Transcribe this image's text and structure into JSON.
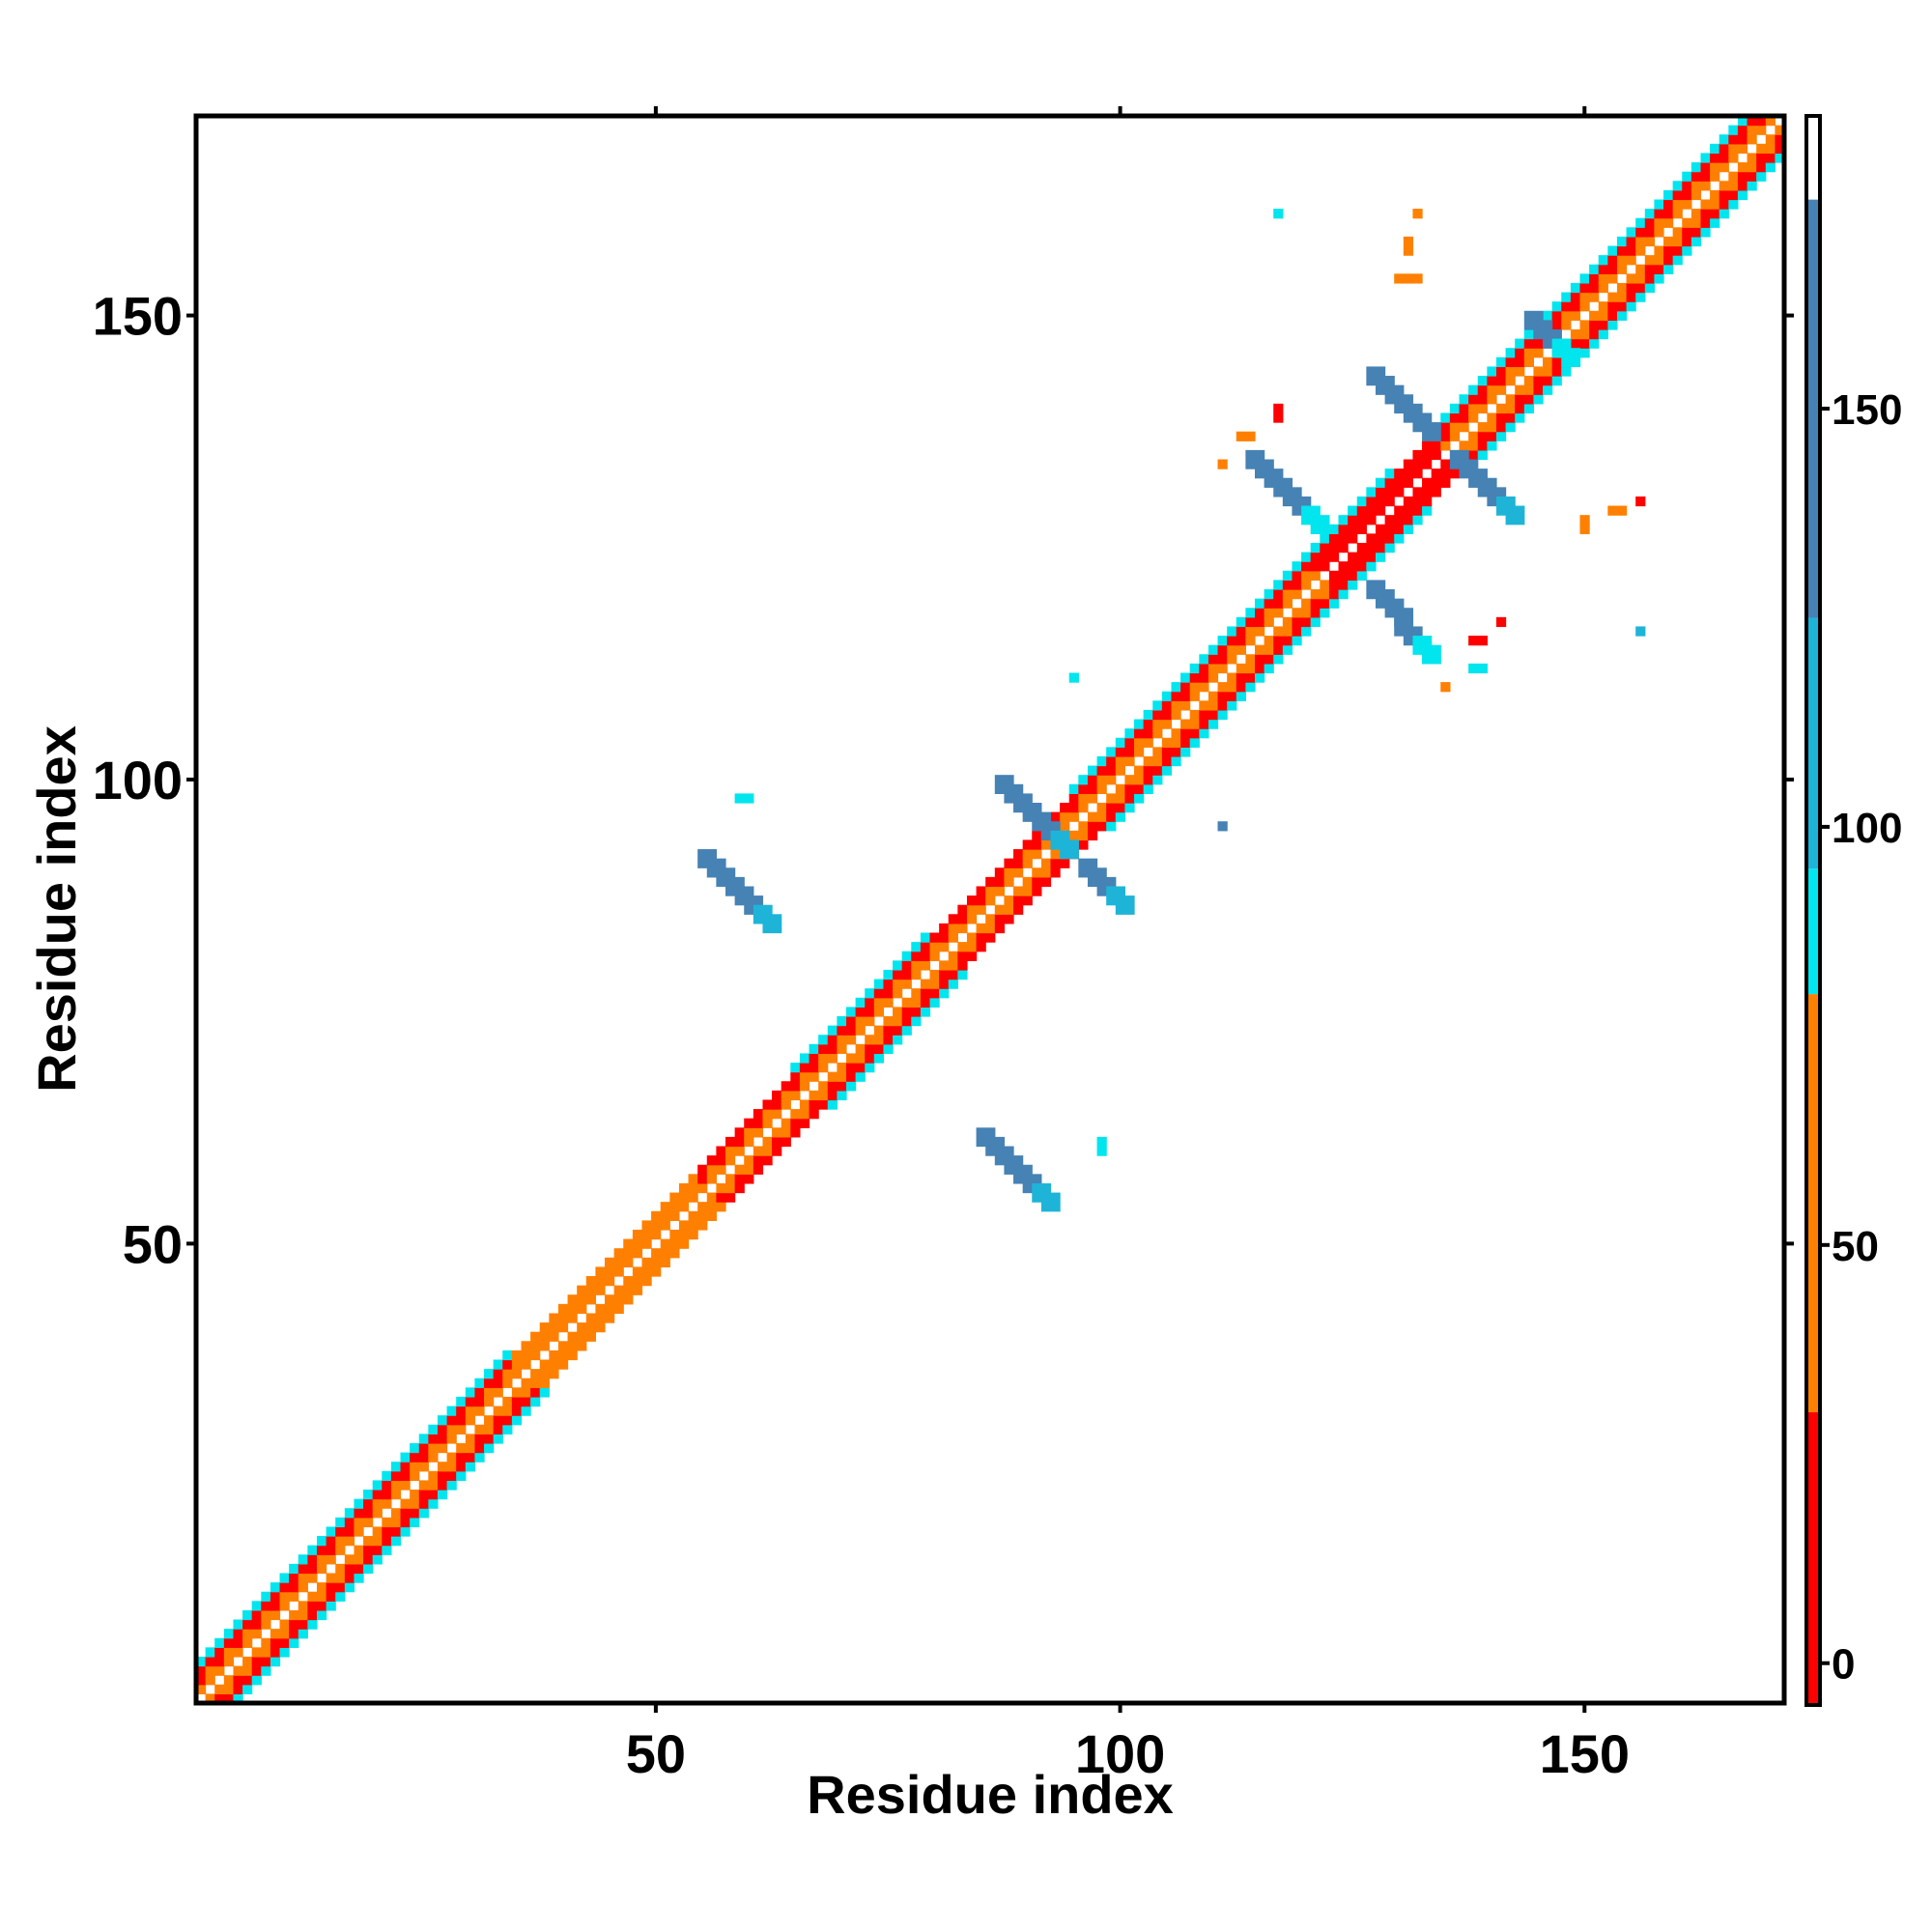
{
  "chart_data": {
    "type": "heatmap",
    "title": "",
    "xlabel": "Residue index",
    "ylabel": "Residue index",
    "xlim": [
      1,
      171
    ],
    "ylim": [
      1,
      171
    ],
    "x_ticks": [
      50,
      100,
      150
    ],
    "y_ticks": [
      50,
      100,
      150
    ],
    "x_tick_labels": [
      "50",
      "100",
      "150"
    ],
    "y_tick_labels": [
      "50",
      "100",
      "150"
    ],
    "grid": false,
    "colorbar": {
      "range": [
        -5,
        185
      ],
      "ticks": [
        0,
        50,
        100,
        150
      ],
      "tick_labels": [
        "0",
        "50",
        "100",
        "150"
      ],
      "bands": [
        {
          "from": -5,
          "to": 30,
          "color": "#ff0000"
        },
        {
          "from": 30,
          "to": 80,
          "color": "#ff8000"
        },
        {
          "from": 80,
          "to": 95,
          "color": "#00e5ee"
        },
        {
          "from": 95,
          "to": 125,
          "color": "#1eb4d8"
        },
        {
          "from": 125,
          "to": 175,
          "color": "#4682b4"
        },
        {
          "from": 175,
          "to": 185,
          "color": "#ffffff"
        }
      ]
    },
    "diagonal": {
      "from": 1,
      "to": 171,
      "segments": [
        {
          "start": 1,
          "end": 15,
          "inner": "#ff8000",
          "outer": "#ff0000",
          "edge": "#00e5ee"
        },
        {
          "start": 15,
          "end": 35,
          "inner": "#ff8000",
          "outer": "#ff0000",
          "edge": "#00e5ee"
        },
        {
          "start": 35,
          "end": 55,
          "inner": "#ff8000",
          "outer": "#ff8000",
          "edge": ""
        },
        {
          "start": 55,
          "end": 65,
          "inner": "#ff8000",
          "outer": "#ff0000",
          "edge": ""
        },
        {
          "start": 65,
          "end": 80,
          "inner": "#ff8000",
          "outer": "#ff0000",
          "edge": "#00e5ee"
        },
        {
          "start": 80,
          "end": 95,
          "inner": "#ff8000",
          "outer": "#ff0000",
          "edge": ""
        },
        {
          "start": 95,
          "end": 112,
          "inner": "#ff8000",
          "outer": "#ff0000",
          "edge": "#00e5ee"
        },
        {
          "start": 112,
          "end": 122,
          "inner": "#ff8000",
          "outer": "#ff0000",
          "edge": "#00e5ee"
        },
        {
          "start": 122,
          "end": 130,
          "inner": "#ff0000",
          "outer": "#ff0000",
          "edge": "#00e5ee"
        },
        {
          "start": 130,
          "end": 135,
          "inner": "#ff0000",
          "outer": "#ff0000",
          "edge": ""
        },
        {
          "start": 135,
          "end": 145,
          "inner": "#ff8000",
          "outer": "#ff0000",
          "edge": "#00e5ee"
        },
        {
          "start": 145,
          "end": 171,
          "inner": "#ff8000",
          "outer": "#ff0000",
          "edge": "#00e5ee"
        }
      ]
    },
    "contacts": [
      {
        "x1": 55,
        "y1": 91,
        "x2": 62,
        "y2": 84,
        "color": "#4682b4",
        "end_color": "#1eb4d8"
      },
      {
        "x1": 85,
        "y1": 61,
        "x2": 92,
        "y2": 54,
        "color": "#4682b4",
        "end_color": "#1eb4d8"
      },
      {
        "x1": 87,
        "y1": 99,
        "x2": 94,
        "y2": 92,
        "color": "#4682b4",
        "end_color": "#1eb4d8"
      },
      {
        "x1": 96,
        "y1": 90,
        "x2": 100,
        "y2": 86,
        "color": "#4682b4",
        "end_color": "#1eb4d8"
      },
      {
        "x1": 114,
        "y1": 134,
        "x2": 121,
        "y2": 127,
        "color": "#4682b4",
        "end_color": "#00e5ee"
      },
      {
        "x1": 127,
        "y1": 120,
        "x2": 133,
        "y2": 113,
        "color": "#4682b4",
        "end_color": "#00e5ee"
      },
      {
        "x1": 127,
        "y1": 143,
        "x2": 133,
        "y2": 137,
        "color": "#4682b4",
        "end_color": "#4682b4"
      },
      {
        "x1": 136,
        "y1": 134,
        "x2": 142,
        "y2": 128,
        "color": "#4682b4",
        "end_color": "#1eb4d8"
      },
      {
        "x1": 144,
        "y1": 149,
        "x2": 148,
        "y2": 145,
        "color": "#4682b4",
        "end_color": "#00e5ee"
      }
    ],
    "points": [
      {
        "x": 59,
        "y": 98,
        "w": 2,
        "h": 1,
        "color": "#00e5ee"
      },
      {
        "x": 95,
        "y": 111,
        "w": 1,
        "h": 1,
        "color": "#00e5ee"
      },
      {
        "x": 98,
        "y": 60,
        "w": 1,
        "h": 2,
        "color": "#00e5ee"
      },
      {
        "x": 111,
        "y": 95,
        "w": 1,
        "h": 1,
        "color": "#4682b4"
      },
      {
        "x": 117,
        "y": 161,
        "w": 1,
        "h": 1,
        "color": "#00e5ee"
      },
      {
        "x": 132,
        "y": 161,
        "w": 1,
        "h": 1,
        "color": "#ff8000"
      },
      {
        "x": 131,
        "y": 157,
        "w": 1,
        "h": 2,
        "color": "#ff8000"
      },
      {
        "x": 130,
        "y": 154,
        "w": 3,
        "h": 1,
        "color": "#ff8000"
      },
      {
        "x": 113,
        "y": 137,
        "w": 2,
        "h": 1,
        "color": "#ff8000"
      },
      {
        "x": 117,
        "y": 139,
        "w": 1,
        "h": 2,
        "color": "#ff0000"
      },
      {
        "x": 111,
        "y": 134,
        "w": 1,
        "h": 1,
        "color": "#ff8000"
      },
      {
        "x": 150,
        "y": 127,
        "w": 1,
        "h": 2,
        "color": "#ff8000"
      },
      {
        "x": 153,
        "y": 129,
        "w": 2,
        "h": 1,
        "color": "#ff8000"
      },
      {
        "x": 156,
        "y": 130,
        "w": 1,
        "h": 1,
        "color": "#ff0000"
      },
      {
        "x": 156,
        "y": 116,
        "w": 1,
        "h": 1,
        "color": "#1eb4d8"
      },
      {
        "x": 138,
        "y": 115,
        "w": 2,
        "h": 1,
        "color": "#ff0000"
      },
      {
        "x": 141,
        "y": 117,
        "w": 1,
        "h": 1,
        "color": "#ff0000"
      },
      {
        "x": 138,
        "y": 112,
        "w": 2,
        "h": 1,
        "color": "#00e5ee"
      },
      {
        "x": 135,
        "y": 110,
        "w": 1,
        "h": 1,
        "color": "#ff8000"
      }
    ]
  }
}
